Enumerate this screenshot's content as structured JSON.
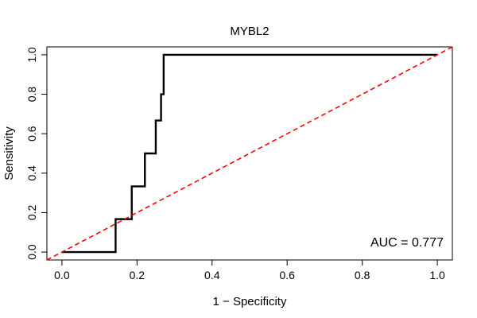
{
  "chart_data": {
    "type": "line",
    "title": "MYBL2",
    "xlabel": "1 − Specificity",
    "ylabel": "Sensitivity",
    "xlim": [
      -0.04,
      1.04
    ],
    "ylim": [
      -0.04,
      1.04
    ],
    "x_ticks": [
      0.0,
      0.2,
      0.4,
      0.6,
      0.8,
      1.0
    ],
    "y_ticks": [
      0.0,
      0.2,
      0.4,
      0.6,
      0.8,
      1.0
    ],
    "x_tick_labels": [
      "0.0",
      "0.2",
      "0.4",
      "0.6",
      "0.8",
      "1.0"
    ],
    "y_tick_labels": [
      "0.0",
      "0.2",
      "0.4",
      "0.6",
      "0.8",
      "1.0"
    ],
    "grid": false,
    "series": [
      {
        "color": "#000000",
        "style": "solid",
        "x": [
          0.0,
          0.143,
          0.143,
          0.186,
          0.186,
          0.221,
          0.221,
          0.25,
          0.25,
          0.264,
          0.264,
          0.271,
          0.271,
          1.0
        ],
        "y": [
          0.0,
          0.0,
          0.167,
          0.167,
          0.333,
          0.333,
          0.5,
          0.5,
          0.667,
          0.667,
          0.8,
          0.8,
          1.0,
          1.0
        ]
      },
      {
        "color": "#ff0000",
        "style": "dashed",
        "x": [
          -0.04,
          1.04
        ],
        "y": [
          -0.04,
          1.04
        ]
      }
    ],
    "annotation": "AUC = 0.777"
  }
}
